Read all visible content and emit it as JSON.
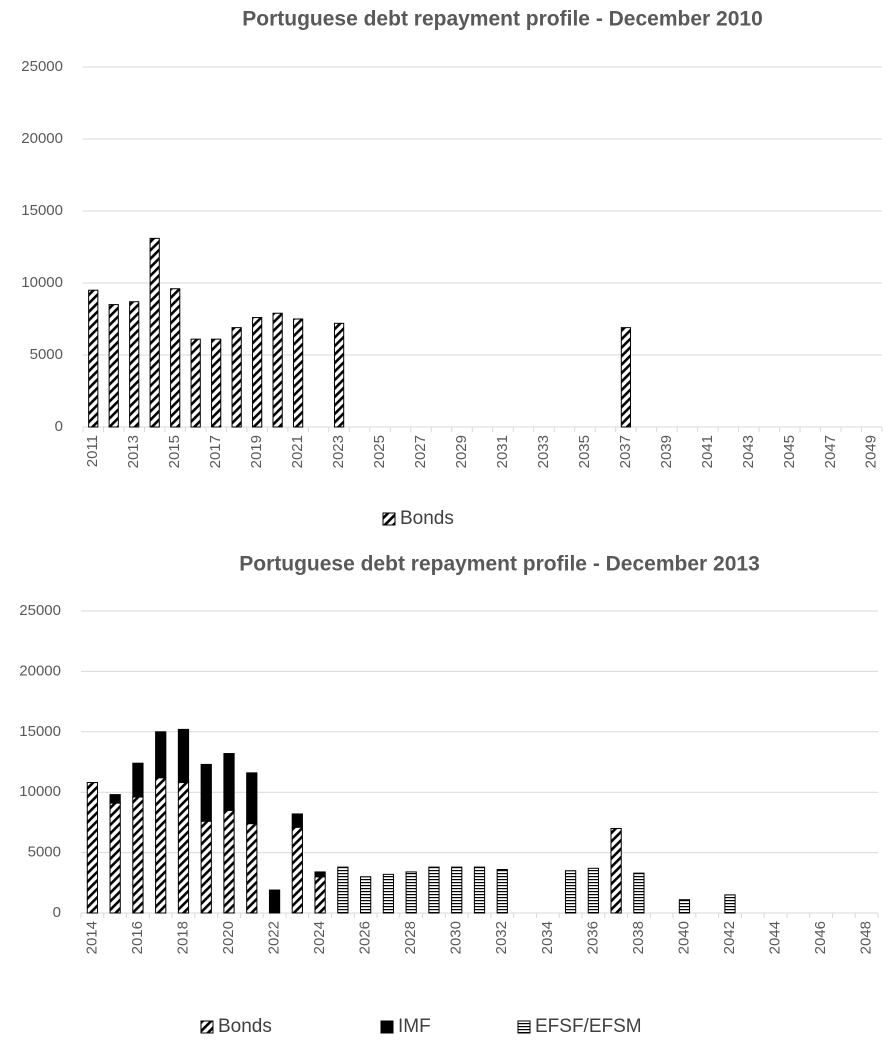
{
  "chart_data": [
    {
      "type": "bar",
      "title": "Portuguese debt repayment profile - December 2010",
      "categories": [
        "2011",
        null,
        "2013",
        null,
        "2015",
        null,
        "2017",
        null,
        "2019",
        null,
        "2021",
        null,
        "2023",
        null,
        "2025",
        null,
        "2027",
        null,
        "2029",
        null,
        "2031",
        null,
        "2033",
        null,
        "2035",
        null,
        "2037",
        null,
        "2039",
        null,
        "2041",
        null,
        "2043",
        null,
        "2045",
        null,
        "2047",
        null,
        "2049"
      ],
      "series": [
        {
          "name": "Bonds",
          "color": "#000000",
          "pattern": "diagonal",
          "values": [
            9500,
            8500,
            8700,
            13100,
            9600,
            6100,
            6100,
            6900,
            7600,
            7900,
            7500,
            0,
            7200,
            0,
            0,
            0,
            0,
            0,
            0,
            0,
            0,
            0,
            0,
            0,
            0,
            0,
            6900,
            0,
            0,
            0,
            0,
            0,
            0,
            0,
            0,
            0,
            0,
            0,
            0
          ]
        }
      ],
      "ylim": [
        0,
        25000
      ],
      "yticks": [
        0,
        5000,
        10000,
        15000,
        20000,
        25000
      ],
      "grid": true,
      "legend": "bottom"
    },
    {
      "type": "stacked_bar",
      "title": "Portuguese debt repayment profile - December 2013",
      "categories": [
        "2014",
        null,
        "2016",
        null,
        "2018",
        null,
        "2020",
        null,
        "2022",
        null,
        "2024",
        null,
        "2026",
        null,
        "2028",
        null,
        "2030",
        null,
        "2032",
        null,
        "2034",
        null,
        "2036",
        null,
        "2038",
        null,
        "2040",
        null,
        "2042",
        null,
        "2044",
        null,
        "2046",
        null,
        "2048"
      ],
      "series": [
        {
          "name": "Bonds",
          "color": "#000000",
          "pattern": "diagonal",
          "values": [
            10800,
            9100,
            9600,
            11200,
            10800,
            7600,
            8500,
            7400,
            0,
            7100,
            3000,
            0,
            0,
            0,
            0,
            0,
            0,
            0,
            0,
            0,
            0,
            0,
            0,
            7000,
            0,
            0,
            0,
            0,
            0,
            0,
            0,
            0,
            0,
            0,
            0
          ]
        },
        {
          "name": "IMF",
          "color": "#000000",
          "pattern": "solid",
          "values": [
            0,
            700,
            2800,
            3800,
            4400,
            4700,
            4700,
            4200,
            1900,
            1100,
            400,
            0,
            0,
            0,
            0,
            0,
            0,
            0,
            0,
            0,
            0,
            0,
            0,
            0,
            0,
            0,
            0,
            0,
            0,
            0,
            0,
            0,
            0,
            0,
            0
          ]
        },
        {
          "name": "EFSF/EFSM",
          "color": "#000000",
          "pattern": "horizontal",
          "values": [
            0,
            0,
            0,
            0,
            0,
            0,
            0,
            0,
            0,
            0,
            0,
            3800,
            3000,
            3200,
            3400,
            3800,
            3800,
            3800,
            3600,
            0,
            0,
            3500,
            3700,
            0,
            3300,
            0,
            1100,
            0,
            1500,
            0,
            0,
            0,
            0,
            0,
            0
          ]
        }
      ],
      "ylim": [
        0,
        25000
      ],
      "yticks": [
        0,
        5000,
        10000,
        15000,
        20000,
        25000
      ],
      "grid": true,
      "legend": "bottom"
    }
  ]
}
